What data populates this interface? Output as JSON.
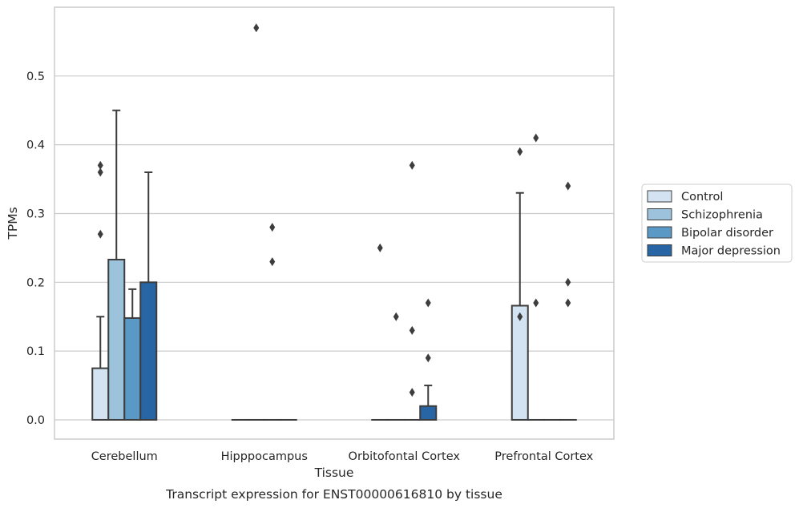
{
  "caption": "Transcript expression for ENST00000616810 by tissue",
  "colors": {
    "grid": "#cccccc",
    "frame": "#cccccc",
    "edge": "#3d3d3d",
    "series": [
      "#d3e3f1",
      "#9dc3dc",
      "#5a99c5",
      "#2765a5"
    ]
  },
  "chart_data": {
    "type": "bar",
    "xlabel": "Tissue",
    "ylabel": "TPMs",
    "categories": [
      "Cerebellum",
      "Hipppocampus",
      "Orbitofontal Cortex",
      "Prefrontal Cortex"
    ],
    "ylim": [
      -0.028,
      0.6
    ],
    "yticks": [
      0.0,
      0.1,
      0.2,
      0.3,
      0.4,
      0.5
    ],
    "ytick_labels": [
      "0.0",
      "0.1",
      "0.2",
      "0.3",
      "0.4",
      "0.5"
    ],
    "grid": true,
    "legend_position": "right",
    "series": [
      {
        "name": "Control",
        "color": "#d3e3f1",
        "values": [
          0.075,
          0.0,
          0.0,
          0.166
        ],
        "err_upper": [
          0.15,
          null,
          null,
          0.33
        ],
        "outliers": [
          [
            0.27,
            0.36,
            0.37
          ],
          [],
          [
            0.25
          ],
          [
            0.15,
            0.39
          ]
        ]
      },
      {
        "name": "Schizophrenia",
        "color": "#9dc3dc",
        "values": [
          0.233,
          0.0,
          0.0,
          0.0
        ],
        "err_upper": [
          0.45,
          null,
          null,
          null
        ],
        "outliers": [
          [],
          [
            0.57
          ],
          [
            0.15
          ],
          [
            0.17,
            0.41
          ]
        ]
      },
      {
        "name": "Bipolar disorder",
        "color": "#5a99c5",
        "values": [
          0.148,
          0.0,
          0.0,
          0.0
        ],
        "err_upper": [
          0.19,
          null,
          null,
          null
        ],
        "outliers": [
          [],
          [
            0.23,
            0.28
          ],
          [
            0.04,
            0.13,
            0.37
          ],
          []
        ]
      },
      {
        "name": "Major depression",
        "color": "#2765a5",
        "values": [
          0.2,
          0.0,
          0.02,
          0.0
        ],
        "err_upper": [
          0.36,
          null,
          0.05,
          null
        ],
        "outliers": [
          [],
          [],
          [
            0.09,
            0.17
          ],
          [
            0.17,
            0.2,
            0.34
          ]
        ]
      }
    ]
  }
}
